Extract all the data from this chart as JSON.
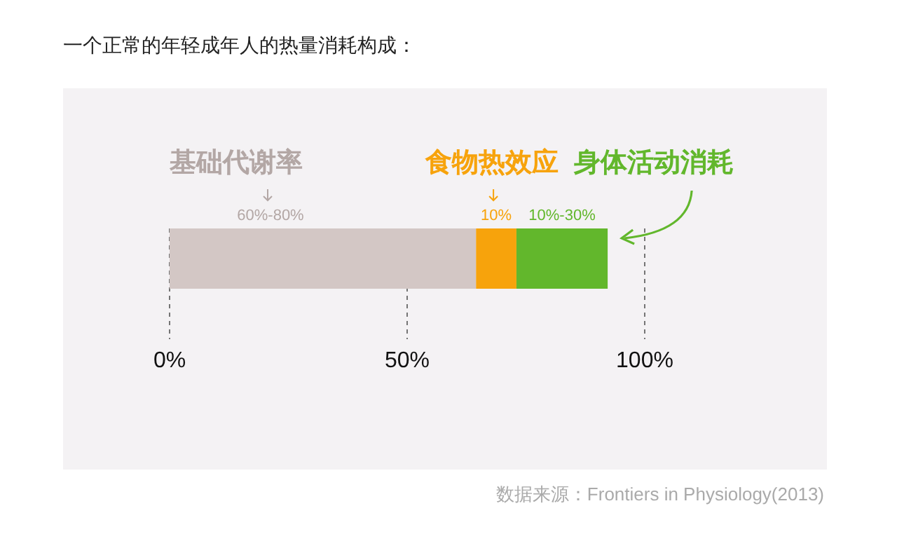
{
  "chart_data": {
    "type": "bar",
    "orientation": "horizontal",
    "stacked": true,
    "title": "一个正常的年轻成年人的热量消耗构成：",
    "categories": [
      null
    ],
    "series": [
      {
        "name": "基础代谢率",
        "color": "#d3c7c5",
        "values": [
          64.5
        ]
      },
      {
        "name": "食物热效应",
        "color": "#f7a30c",
        "values": [
          8.5
        ]
      },
      {
        "name": "身体活动消耗",
        "color": "#62b72c",
        "values": [
          19.2
        ]
      }
    ],
    "xlim": [
      0,
      100
    ],
    "xticks": [
      {
        "value": 0,
        "label": "0%"
      },
      {
        "value": 50,
        "label": "50%"
      },
      {
        "value": 100,
        "label": "100%"
      }
    ],
    "grid": "x",
    "annotations": [
      "60%-80%",
      "10%",
      "10%-30%",
      "数据来源：Frontiers in Physiology(2013)"
    ]
  }
}
